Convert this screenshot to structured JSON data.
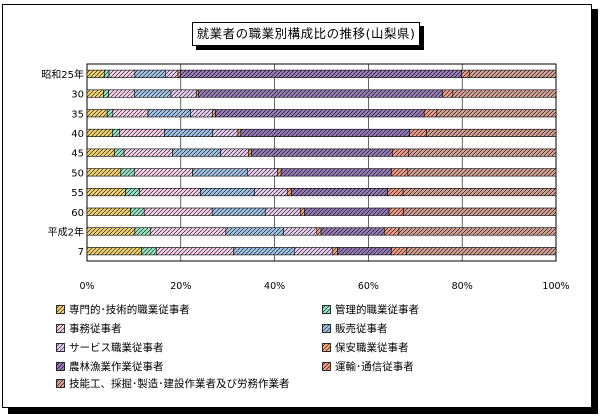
{
  "chart_data": {
    "type": "bar",
    "orientation": "horizontal",
    "stacked": true,
    "percent": true,
    "title": "就業者の職業別構成比の推移(山梨県)",
    "categories": [
      "昭和25年",
      "30",
      "35",
      "40",
      "45",
      "50",
      "55",
      "60",
      "平成2年",
      "7"
    ],
    "xlim": [
      0,
      100
    ],
    "xticks": [
      "0%",
      "20%",
      "40%",
      "60%",
      "80%",
      "100%"
    ],
    "grid": true,
    "legend_position": "bottom",
    "series": [
      {
        "name": "専門的･技術的職業従事者",
        "color": "#f5d77a",
        "values": [
          3.7,
          3.5,
          4.3,
          5.4,
          5.9,
          7.2,
          8.2,
          9.3,
          10.2,
          11.6
        ]
      },
      {
        "name": "管理的職業従事者",
        "color": "#9fe8c8",
        "values": [
          1.0,
          1.1,
          1.2,
          1.5,
          2.0,
          2.9,
          3.0,
          2.9,
          3.3,
          3.2
        ]
      },
      {
        "name": "事務従事者",
        "color": "#fbd7ee",
        "values": [
          5.5,
          5.5,
          7.5,
          9.6,
          10.3,
          12.4,
          13.0,
          14.5,
          16.1,
          16.4
        ]
      },
      {
        "name": "販売従事者",
        "color": "#a8c8ea",
        "values": [
          6.5,
          7.8,
          9.1,
          10.3,
          10.3,
          11.7,
          11.5,
          11.3,
          12.3,
          13.0
        ]
      },
      {
        "name": "サービス職業従事者",
        "color": "#ecd3f3",
        "values": [
          2.7,
          5.4,
          4.7,
          5.4,
          5.9,
          6.4,
          7.0,
          7.5,
          7.1,
          8.2
        ]
      },
      {
        "name": "保安職業従事者",
        "color": "#f5ad86",
        "values": [
          0.5,
          0.5,
          0.6,
          0.6,
          0.7,
          0.8,
          0.9,
          0.9,
          0.9,
          1.0
        ]
      },
      {
        "name": "農林漁業作業従事者",
        "color": "#9b7fbc",
        "values": [
          60.0,
          52.0,
          44.5,
          36.0,
          30.0,
          23.5,
          20.5,
          18.0,
          13.5,
          11.5
        ]
      },
      {
        "name": "運輸･通信従事者",
        "color": "#f2a08f",
        "values": [
          1.6,
          2.2,
          2.7,
          3.6,
          3.4,
          3.5,
          3.3,
          3.1,
          3.1,
          3.2
        ]
      },
      {
        "name": "技能工、採掘･製造･建設作業者及び労務作業者",
        "color": "#d9a69b",
        "values": [
          18.5,
          22.0,
          25.4,
          27.6,
          31.5,
          31.6,
          32.6,
          32.5,
          33.5,
          31.9
        ]
      }
    ]
  }
}
